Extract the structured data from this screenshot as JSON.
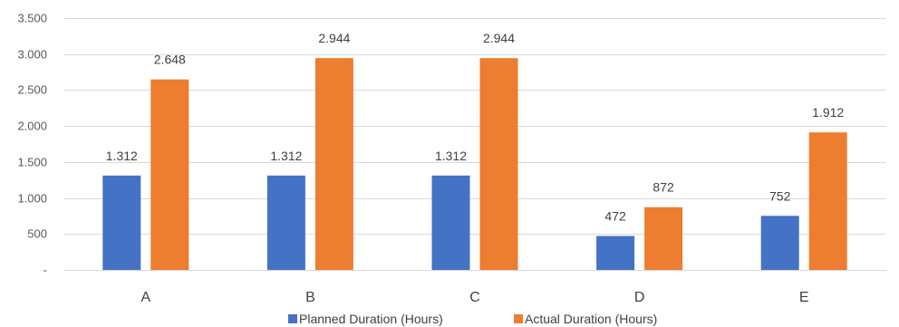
{
  "chart_data": {
    "type": "bar",
    "categories": [
      "A",
      "B",
      "C",
      "D",
      "E"
    ],
    "series": [
      {
        "name": "Planned Duration (Hours)",
        "color": "#4472C4",
        "values": [
          1312,
          1312,
          1312,
          472,
          752
        ],
        "labels": [
          "1.312",
          "1.312",
          "1.312",
          "472",
          "752"
        ]
      },
      {
        "name": "Actual Duration (Hours)",
        "color": "#ED7D31",
        "values": [
          2648,
          2944,
          2944,
          872,
          1912
        ],
        "labels": [
          "2.648",
          "2.944",
          "2.944",
          "872",
          "1.912"
        ]
      }
    ],
    "ylim": [
      0,
      3500
    ],
    "yticks": [
      0,
      500,
      1000,
      1500,
      2000,
      2500,
      3000,
      3500
    ],
    "ytick_labels": [
      "-",
      "500",
      "1.000",
      "1.500",
      "2.000",
      "2.500",
      "3.000",
      "3.500"
    ],
    "title": "",
    "xlabel": "",
    "ylabel": "",
    "grid": true,
    "legend_position": "bottom"
  }
}
